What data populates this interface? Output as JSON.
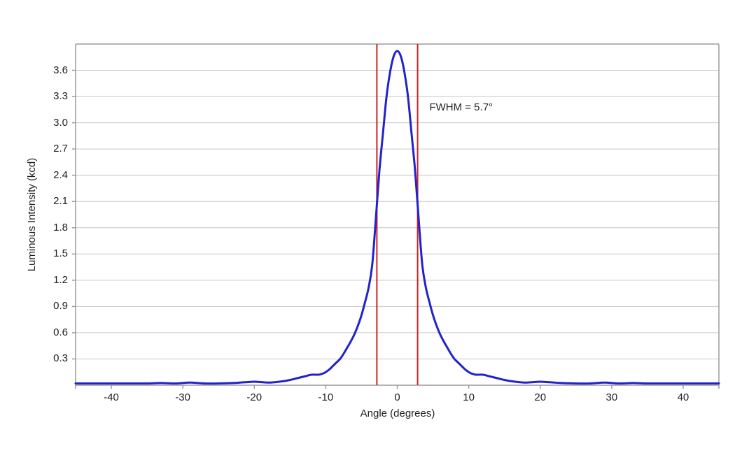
{
  "colors": {
    "background": "#ffffff",
    "curve": "#2222cc",
    "reference_line": "#cc2222",
    "gridline": "#c6c6c6",
    "axis": "#9b9b9b",
    "text": "#1f1f1f"
  },
  "chart_data": {
    "type": "line",
    "title": "",
    "xlabel": "Angle (degrees)",
    "ylabel": "Luminous Intensity (kcd)",
    "x_range": [
      -45,
      45
    ],
    "y_range": [
      0,
      3.9
    ],
    "grid": "horizontal-only",
    "legend": "none",
    "x_ticks": [
      {
        "value": -40,
        "label": "-40"
      },
      {
        "value": -30,
        "label": "-30"
      },
      {
        "value": -20,
        "label": "-20"
      },
      {
        "value": -10,
        "label": "-10"
      },
      {
        "value": 0,
        "label": "0"
      },
      {
        "value": 10,
        "label": "10"
      },
      {
        "value": 20,
        "label": "20"
      },
      {
        "value": 30,
        "label": "30"
      },
      {
        "value": 40,
        "label": "40"
      }
    ],
    "y_ticks": [
      {
        "value": 0.3,
        "label": "0.3"
      },
      {
        "value": 0.6,
        "label": "0.6"
      },
      {
        "value": 0.9,
        "label": "0.9"
      },
      {
        "value": 1.2,
        "label": "1.2"
      },
      {
        "value": 1.5,
        "label": "1.5"
      },
      {
        "value": 1.8,
        "label": "1.8"
      },
      {
        "value": 2.1,
        "label": "2.1"
      },
      {
        "value": 2.4,
        "label": "2.4"
      },
      {
        "value": 2.7,
        "label": "2.7"
      },
      {
        "value": 3.0,
        "label": "3.0"
      },
      {
        "value": 3.3,
        "label": "3.3"
      },
      {
        "value": 3.6,
        "label": "3.6"
      }
    ],
    "annotation": {
      "text": "FWHM = 5.7°",
      "anchor_angle": 4.5,
      "anchor_value": 3.17
    },
    "reference_lines": [
      {
        "axis": "x",
        "value": -2.85,
        "color": "#cc2222",
        "name": "fwhm-line-left"
      },
      {
        "axis": "x",
        "value": 2.85,
        "color": "#cc2222",
        "name": "fwhm-line-right"
      }
    ],
    "peak": {
      "angle": 0,
      "value": 3.82
    },
    "fwhm_degrees": 5.7,
    "series": [
      {
        "name": "Luminous Intensity",
        "color": "#2222cc",
        "points": [
          [
            -45,
            0.02
          ],
          [
            -43,
            0.02
          ],
          [
            -41,
            0.02
          ],
          [
            -39,
            0.02
          ],
          [
            -37,
            0.02
          ],
          [
            -35,
            0.02
          ],
          [
            -33,
            0.025
          ],
          [
            -31,
            0.02
          ],
          [
            -29,
            0.03
          ],
          [
            -27,
            0.02
          ],
          [
            -25,
            0.02
          ],
          [
            -23,
            0.025
          ],
          [
            -22,
            0.03
          ],
          [
            -21,
            0.035
          ],
          [
            -20,
            0.04
          ],
          [
            -19,
            0.035
          ],
          [
            -18,
            0.03
          ],
          [
            -17,
            0.035
          ],
          [
            -16,
            0.045
          ],
          [
            -15,
            0.06
          ],
          [
            -14,
            0.08
          ],
          [
            -13,
            0.1
          ],
          [
            -12,
            0.12
          ],
          [
            -11,
            0.12
          ],
          [
            -10.5,
            0.13
          ],
          [
            -10,
            0.15
          ],
          [
            -9.5,
            0.18
          ],
          [
            -9,
            0.22
          ],
          [
            -8.5,
            0.26
          ],
          [
            -8,
            0.3
          ],
          [
            -7.5,
            0.36
          ],
          [
            -7,
            0.43
          ],
          [
            -6.5,
            0.5
          ],
          [
            -6,
            0.58
          ],
          [
            -5.5,
            0.68
          ],
          [
            -5,
            0.8
          ],
          [
            -4.5,
            0.95
          ],
          [
            -4,
            1.12
          ],
          [
            -3.5,
            1.38
          ],
          [
            -3,
            1.9
          ],
          [
            -2.5,
            2.45
          ],
          [
            -2,
            2.88
          ],
          [
            -1.5,
            3.3
          ],
          [
            -1,
            3.58
          ],
          [
            -0.5,
            3.76
          ],
          [
            0,
            3.82
          ],
          [
            0.5,
            3.76
          ],
          [
            1,
            3.58
          ],
          [
            1.5,
            3.3
          ],
          [
            2,
            2.88
          ],
          [
            2.5,
            2.45
          ],
          [
            3,
            1.9
          ],
          [
            3.5,
            1.38
          ],
          [
            4,
            1.12
          ],
          [
            4.5,
            0.95
          ],
          [
            5,
            0.8
          ],
          [
            5.5,
            0.68
          ],
          [
            6,
            0.58
          ],
          [
            6.5,
            0.5
          ],
          [
            7,
            0.43
          ],
          [
            7.5,
            0.36
          ],
          [
            8,
            0.3
          ],
          [
            8.5,
            0.26
          ],
          [
            9,
            0.22
          ],
          [
            9.5,
            0.18
          ],
          [
            10,
            0.15
          ],
          [
            10.5,
            0.13
          ],
          [
            11,
            0.12
          ],
          [
            12,
            0.12
          ],
          [
            13,
            0.1
          ],
          [
            14,
            0.08
          ],
          [
            15,
            0.06
          ],
          [
            16,
            0.045
          ],
          [
            17,
            0.035
          ],
          [
            18,
            0.03
          ],
          [
            19,
            0.035
          ],
          [
            20,
            0.04
          ],
          [
            21,
            0.035
          ],
          [
            22,
            0.03
          ],
          [
            23,
            0.025
          ],
          [
            25,
            0.02
          ],
          [
            27,
            0.02
          ],
          [
            29,
            0.03
          ],
          [
            31,
            0.02
          ],
          [
            33,
            0.025
          ],
          [
            35,
            0.02
          ],
          [
            37,
            0.02
          ],
          [
            39,
            0.02
          ],
          [
            41,
            0.02
          ],
          [
            43,
            0.02
          ],
          [
            45,
            0.02
          ]
        ]
      }
    ]
  }
}
